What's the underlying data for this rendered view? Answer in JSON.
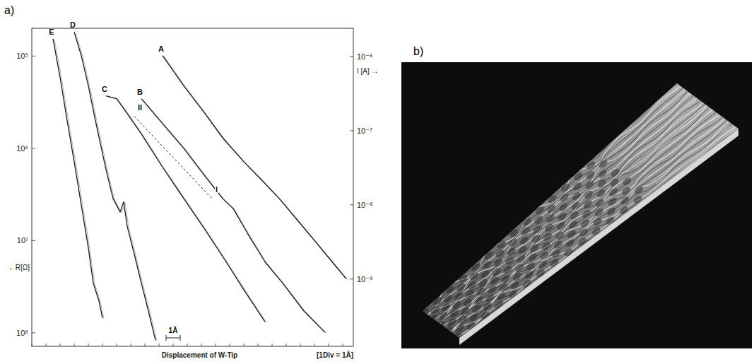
{
  "chart_data": {
    "type": "line",
    "panel_label": "a)",
    "xlabel": "Displacement of W-Tip",
    "x_note": "[1Div = 1Å]",
    "ylabel": "←R[Ω]",
    "y2label": "I [A] →",
    "log": "y",
    "tick_labels": "y",
    "grid": false,
    "xlim": [
      0,
      22.75
    ],
    "xticks": [
      0,
      1,
      2,
      3,
      4,
      5,
      6,
      7,
      8,
      9,
      10,
      11,
      12,
      13,
      14,
      15,
      16,
      17,
      18,
      19,
      20,
      21,
      22
    ],
    "ylim": [
      140000000,
      50000
    ],
    "yticks": [
      {
        "value": 100000,
        "label": "10⁵"
      },
      {
        "value": 1000000,
        "label": "10⁶"
      },
      {
        "value": 10000000,
        "label": "10⁷"
      },
      {
        "value": 100000000,
        "label": "10⁸"
      }
    ],
    "y2lim": [
      1.24e-10,
      2.4e-06
    ],
    "y2ticks": [
      {
        "value": 1e-06,
        "label": "10⁻⁶"
      },
      {
        "value": 1e-07,
        "label": "10⁻⁷"
      },
      {
        "value": 1e-08,
        "label": "10⁻⁸"
      },
      {
        "value": 1e-09,
        "label": "10⁻⁹"
      }
    ],
    "series": [
      {
        "name": "A",
        "color": "#1a1a1a",
        "line_style": "solid",
        "x": [
          9.25,
          10.75,
          12.25,
          13.5,
          15,
          16.25,
          17.5,
          18.75,
          20,
          21.25,
          22.25
        ],
        "values": [
          99000,
          210000,
          420000,
          770000,
          1400000,
          2200000,
          3500000,
          5900000,
          10000000,
          17000000,
          26000000
        ]
      },
      {
        "name": "B",
        "color": "#1a1a1a",
        "line_style": "solid",
        "x": [
          7.75,
          9.25,
          10.75,
          12.25,
          13.5,
          14.25,
          15.25,
          16.5,
          17.75,
          19.25,
          20.75
        ],
        "values": [
          290000,
          540000,
          1000000,
          2000000,
          3500000,
          4500000,
          8300000,
          17000000,
          29000000,
          58000000,
          99000000
        ]
      },
      {
        "name": "C",
        "color": "#1a1a1a",
        "line_style": "solid",
        "x": [
          5.25,
          6,
          6.75,
          7.75,
          9.25,
          10.75,
          12.25,
          13.75,
          15,
          16.5
        ],
        "values": [
          270000,
          290000,
          420000,
          700000,
          1600000,
          3500000,
          7600000,
          17000000,
          34000000,
          76000000
        ]
      },
      {
        "name": "D",
        "color": "#1a1a1a",
        "line_style": "solid",
        "x": [
          3,
          3.5,
          4,
          4.5,
          5.25,
          5.75,
          6.25,
          6.5,
          6.75,
          7.25,
          7.75,
          8.25,
          8.75
        ],
        "values": [
          55000,
          99000,
          210000,
          500000,
          1700000,
          3500000,
          4900000,
          3800000,
          7000000,
          14000000,
          29000000,
          58000000,
          120000000
        ]
      },
      {
        "name": "E",
        "color": "#1a1a1a",
        "line_style": "solid",
        "x": [
          1.5,
          2,
          2.5,
          3,
          3.5,
          4,
          4.35,
          4.75,
          5
        ],
        "values": [
          65000,
          170000,
          500000,
          1400000,
          4100000,
          12000000,
          29000000,
          45000000,
          69000000
        ]
      }
    ],
    "annotations": [
      {
        "text": "II",
        "x": 7.25,
        "y": 450000
      },
      {
        "text": "I",
        "x": 12.75,
        "y": 3500000
      }
    ],
    "scale_bar": {
      "label": "1Å",
      "length": 1
    }
  },
  "image_panel": {
    "label": "b)"
  }
}
